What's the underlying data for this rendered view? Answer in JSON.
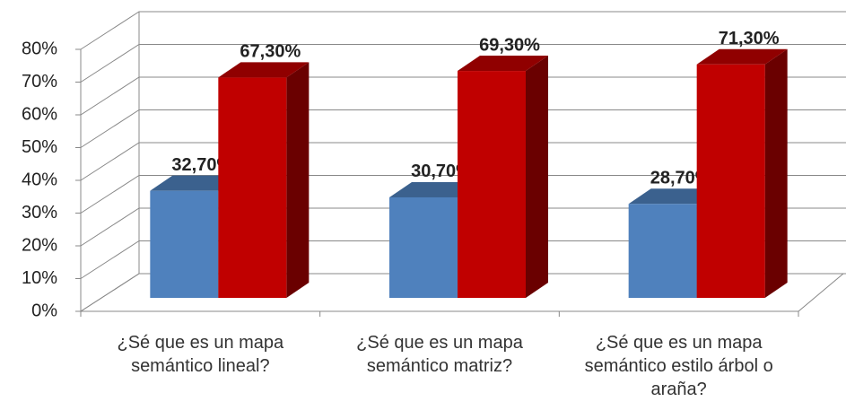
{
  "chart_data": {
    "type": "bar3d",
    "categories": [
      "¿Sé que es un mapa semántico lineal?",
      "¿Sé que es un mapa semántico matriz?",
      "¿Sé que es un mapa semántico estilo árbol o araña?"
    ],
    "series": [
      {
        "color": "#4f81bd",
        "values": [
          32.7,
          30.7,
          28.7
        ],
        "value_labels": [
          "32,70%",
          "30,70%",
          "28,70%"
        ]
      },
      {
        "color": "#c00000",
        "values": [
          67.3,
          69.3,
          71.3
        ],
        "value_labels": [
          "67,30%",
          "69,30%",
          "71,30%"
        ]
      }
    ],
    "ylim": [
      0,
      80
    ],
    "yticks": [
      {
        "value": 0,
        "label": "0%"
      },
      {
        "value": 10,
        "label": "10%"
      },
      {
        "value": 20,
        "label": "20%"
      },
      {
        "value": 30,
        "label": "30%"
      },
      {
        "value": 40,
        "label": "40%"
      },
      {
        "value": 50,
        "label": "50%"
      },
      {
        "value": 60,
        "label": "60%"
      },
      {
        "value": 70,
        "label": "70%"
      },
      {
        "value": 80,
        "label": "80%"
      }
    ],
    "grid": true
  }
}
